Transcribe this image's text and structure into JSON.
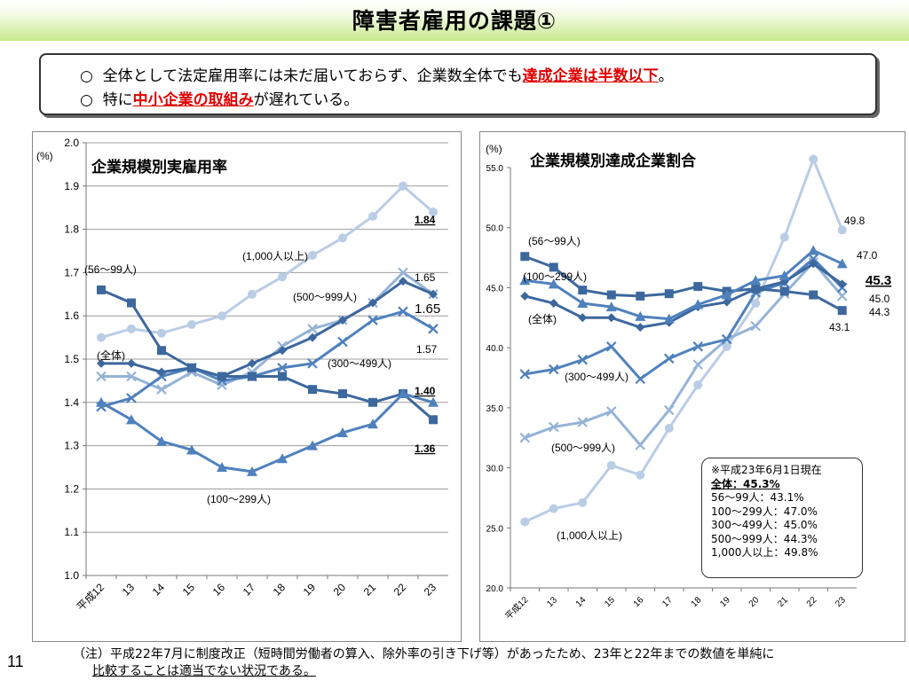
{
  "slide": {
    "title": "障害者雇用の課題①",
    "page_number": "11"
  },
  "summary": {
    "bullet": "○",
    "line1_a": "全体として法定雇用率には未だ届いておらず、企業数全体でも",
    "line1_red": "達成企業は半数以下",
    "line1_b": "。",
    "line2_a": "特に",
    "line2_red": "中小企業の取組み",
    "line2_b": "が遅れている。"
  },
  "footnote": {
    "line1": "（注）平成22年7月に制度改正（短時間労働者の算入、除外率の引き下げ等）があったため、23年と22年までの数値を単純に",
    "line2": "比較することは適当でない状況である。"
  },
  "colors": {
    "dark": "#3d689e",
    "mid": "#4f81bd",
    "light": "#95b3d7",
    "lighter": "#b9cde5",
    "red": "#e00000"
  },
  "chart_data": [
    {
      "type": "line",
      "title": "企業規模別実雇用率",
      "ylabel": "(%)",
      "x": [
        "平成12",
        "13",
        "14",
        "15",
        "16",
        "17",
        "18",
        "19",
        "20",
        "21",
        "22",
        "23"
      ],
      "ylim": [
        1.0,
        2.0
      ],
      "yticks": [
        "1.0",
        "1.1",
        "1.2",
        "1.3",
        "1.4",
        "1.5",
        "1.6",
        "1.7",
        "1.8",
        "1.9",
        "2.0"
      ],
      "grid": true,
      "series": [
        {
          "name": "(1,000人以上)",
          "color": "#b9cde5",
          "marker": "circle",
          "values": [
            1.55,
            1.57,
            1.56,
            1.58,
            1.6,
            1.65,
            1.69,
            1.74,
            1.78,
            1.83,
            1.9,
            1.84
          ]
        },
        {
          "name": "(500～999人)",
          "color": "#95b3d7",
          "marker": "x",
          "values": [
            1.46,
            1.46,
            1.43,
            1.47,
            1.44,
            1.47,
            1.53,
            1.57,
            1.59,
            1.63,
            1.7,
            1.65
          ]
        },
        {
          "name": "(300～499人)",
          "color": "#4f81bd",
          "marker": "x",
          "values": [
            1.39,
            1.41,
            1.46,
            1.48,
            1.45,
            1.46,
            1.48,
            1.49,
            1.54,
            1.59,
            1.61,
            1.57
          ]
        },
        {
          "name": "(全体)",
          "color": "#3d689e",
          "marker": "diamond",
          "values": [
            1.49,
            1.49,
            1.47,
            1.48,
            1.46,
            1.49,
            1.52,
            1.55,
            1.59,
            1.63,
            1.68,
            1.65
          ]
        },
        {
          "name": "(56～99人)",
          "color": "#3d689e",
          "marker": "square",
          "values": [
            1.66,
            1.63,
            1.52,
            1.48,
            1.46,
            1.46,
            1.46,
            1.43,
            1.42,
            1.4,
            1.42,
            1.36
          ]
        },
        {
          "name": "(100～299人)",
          "color": "#4f81bd",
          "marker": "triangle",
          "values": [
            1.4,
            1.36,
            1.31,
            1.29,
            1.25,
            1.24,
            1.27,
            1.3,
            1.33,
            1.35,
            1.42,
            1.4
          ]
        }
      ],
      "annotations": {
        "v1": "1.84",
        "v2": "1.65",
        "v3": "1.65",
        "v4": "1.57",
        "v5": "1.40",
        "v6": "1.36"
      }
    },
    {
      "type": "line",
      "title": "企業規模別達成企業割合",
      "ylabel": "(%)",
      "x": [
        "平成12",
        "13",
        "14",
        "15",
        "16",
        "17",
        "18",
        "19",
        "20",
        "21",
        "22",
        "23"
      ],
      "ylim": [
        20.0,
        55.0
      ],
      "yticks": [
        "20.0",
        "25.0",
        "30.0",
        "35.0",
        "40.0",
        "45.0",
        "50.0",
        "55.0"
      ],
      "grid": false,
      "series": [
        {
          "name": "(1,000人以上)",
          "color": "#b9cde5",
          "marker": "circle",
          "values": [
            25.5,
            26.6,
            27.1,
            30.2,
            29.4,
            33.3,
            36.9,
            40.1,
            43.7,
            49.2,
            55.7,
            49.8
          ]
        },
        {
          "name": "(500～999人)",
          "color": "#95b3d7",
          "marker": "x",
          "values": [
            32.5,
            33.4,
            33.8,
            34.7,
            31.9,
            34.8,
            38.6,
            40.7,
            41.8,
            44.5,
            47.1,
            44.3
          ]
        },
        {
          "name": "(300～499人)",
          "color": "#4f81bd",
          "marker": "x",
          "values": [
            37.8,
            38.2,
            39.0,
            40.1,
            37.4,
            39.1,
            40.1,
            40.7,
            44.6,
            45.4,
            47.4,
            45.0
          ]
        },
        {
          "name": "(全体)",
          "color": "#3d689e",
          "marker": "diamond",
          "values": [
            44.3,
            43.7,
            42.5,
            42.5,
            41.7,
            42.1,
            43.4,
            43.8,
            44.9,
            45.5,
            47.0,
            45.3
          ]
        },
        {
          "name": "(56～99人)",
          "color": "#3d689e",
          "marker": "square",
          "values": [
            47.6,
            46.7,
            44.8,
            44.4,
            44.3,
            44.5,
            45.1,
            44.7,
            44.9,
            44.7,
            44.4,
            43.1
          ]
        },
        {
          "name": "(100～299人)",
          "color": "#4f81bd",
          "marker": "triangle",
          "values": [
            45.6,
            45.3,
            43.7,
            43.4,
            42.6,
            42.4,
            43.6,
            44.4,
            45.6,
            46.0,
            48.1,
            47.0
          ]
        }
      ],
      "annotations": {
        "v1": "49.8",
        "v2": "47.0",
        "v3": "45.3",
        "v4": "45.0",
        "v5": "44.3",
        "v6": "43.1"
      },
      "note": {
        "line1": "※平成23年6月1日現在",
        "line2": "全体：45.3%",
        "line3": "56～99人：43.1%",
        "line4": "100～299人：47.0%",
        "line5": "300～499人：45.0%",
        "line6": "500～999人：44.3%",
        "line7": "1,000人以上：49.8%"
      }
    }
  ]
}
